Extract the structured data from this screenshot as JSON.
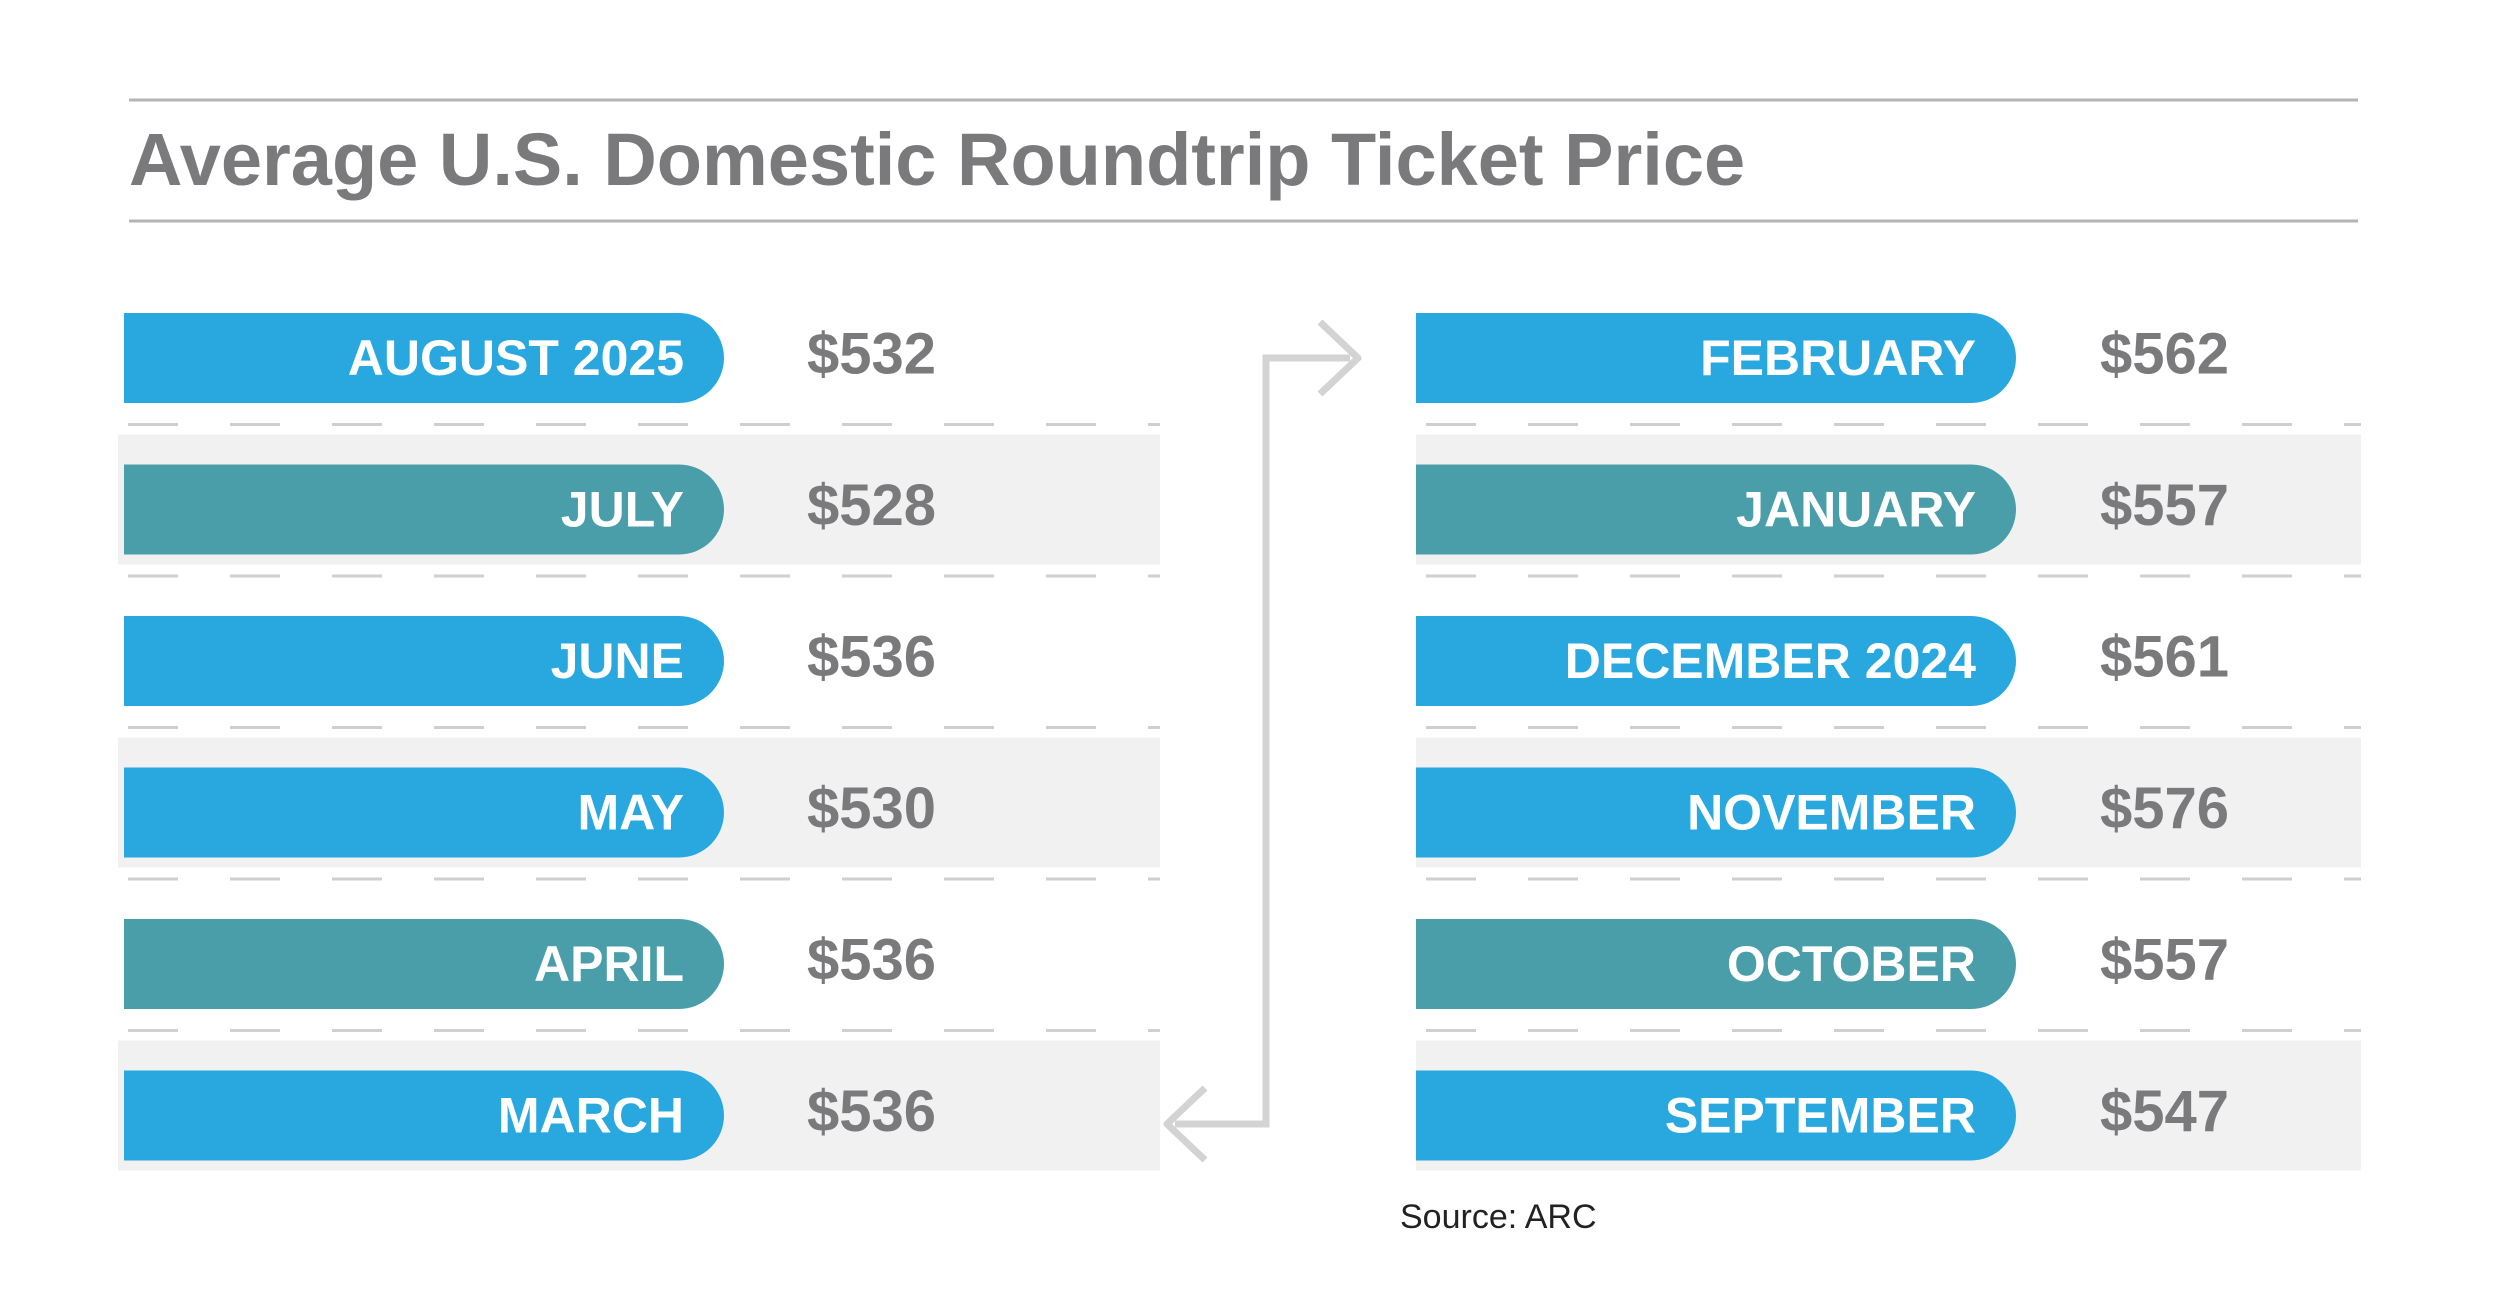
{
  "title": "Average U.S. Domestic Roundtrip Ticket Price",
  "columns": [
    {
      "items": [
        {
          "label": "AUGUST 2025",
          "price": "$532",
          "color": "#29a8e0"
        },
        {
          "label": "JULY",
          "price": "$528",
          "color": "#4a9ea9"
        },
        {
          "label": "JUNE",
          "price": "$536",
          "color": "#29a8e0"
        },
        {
          "label": "MAY",
          "price": "$530",
          "color": "#29a8e0"
        },
        {
          "label": "APRIL",
          "price": "$536",
          "color": "#4a9ea9"
        },
        {
          "label": "MARCH",
          "price": "$536",
          "color": "#29a8e0"
        }
      ]
    },
    {
      "items": [
        {
          "label": "FEBRUARY",
          "price": "$562",
          "color": "#29a8e0"
        },
        {
          "label": "JANUARY",
          "price": "$557",
          "color": "#4a9ea9"
        },
        {
          "label": "DECEMBER 2024",
          "price": "$561",
          "color": "#29a8e0"
        },
        {
          "label": "NOVEMBER",
          "price": "$576",
          "color": "#29a8e0"
        },
        {
          "label": "OCTOBER",
          "price": "$557",
          "color": "#4a9ea9"
        },
        {
          "label": "SEPTEMBER",
          "price": "$547",
          "color": "#29a8e0"
        }
      ]
    }
  ],
  "source": "Source: ARC"
}
